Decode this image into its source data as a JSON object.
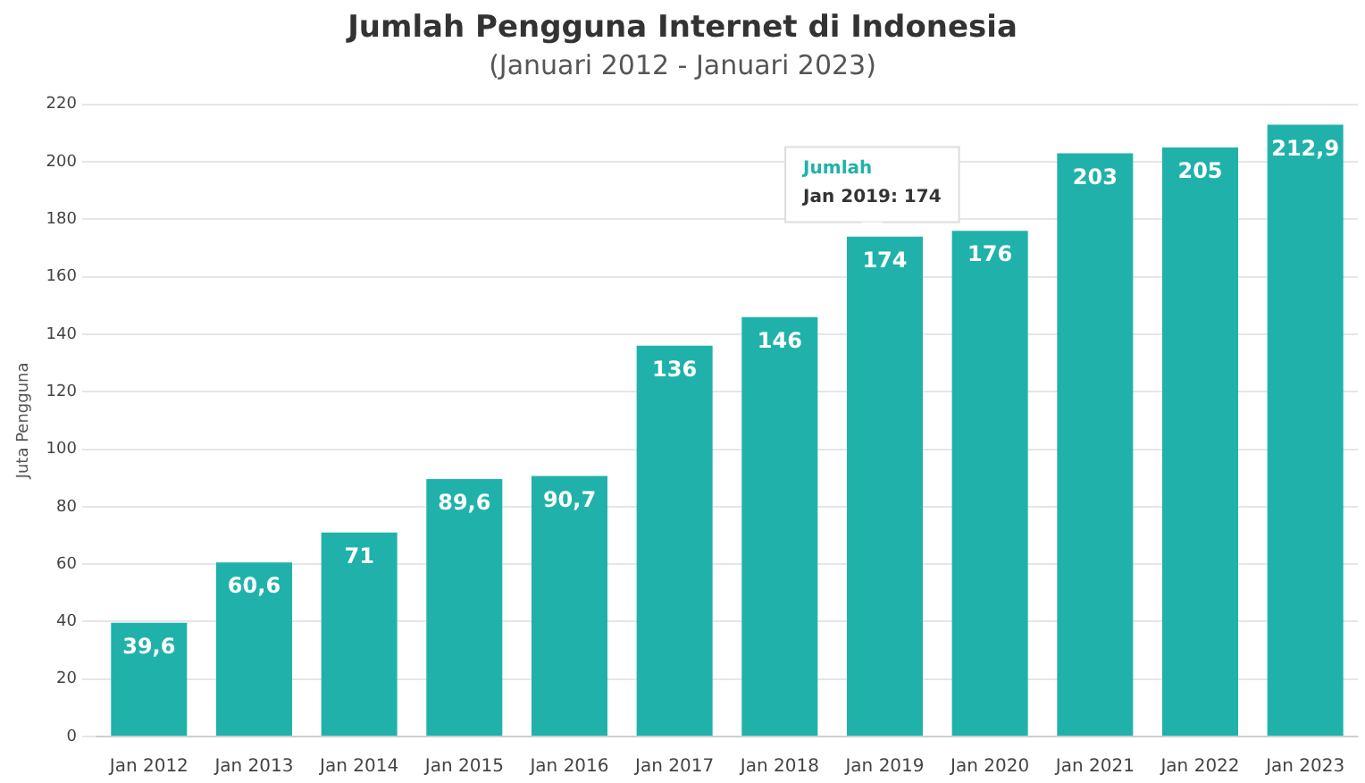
{
  "chart_data": {
    "type": "bar",
    "title": "Jumlah Pengguna Internet di Indonesia",
    "subtitle": "(Januari 2012 - Januari 2023)",
    "ylabel": "Juta Pengguna",
    "categories": [
      "Jan 2012",
      "Jan 2013",
      "Jan 2014",
      "Jan 2015",
      "Jan 2016",
      "Jan 2017",
      "Jan 2018",
      "Jan 2019",
      "Jan 2020",
      "Jan 2021",
      "Jan 2022",
      "Jan 2023"
    ],
    "values": [
      39.6,
      60.6,
      71,
      89.6,
      90.7,
      136,
      146,
      174,
      176,
      203,
      205,
      212.9
    ],
    "value_labels": [
      "39,6",
      "60,6",
      "71",
      "89,6",
      "90,7",
      "136",
      "146",
      "174",
      "176",
      "203",
      "205",
      "212,9"
    ],
    "color": "#20b2aa",
    "ylim": [
      0,
      220
    ],
    "yticks": [
      0,
      20,
      40,
      60,
      80,
      100,
      120,
      140,
      160,
      180,
      200,
      220
    ],
    "grid": "y",
    "annotations": [
      "Jumlah",
      "Jan 2019: 174"
    ]
  }
}
